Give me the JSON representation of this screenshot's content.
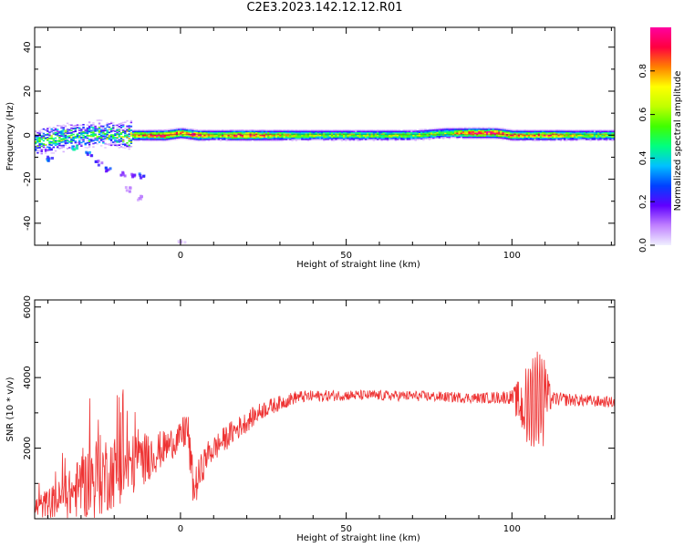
{
  "title": "C2E3.2023.142.12.12.R01",
  "chart_data": [
    {
      "type": "heatmap",
      "xlabel": "Height of straight line (km)",
      "ylabel": "Frequency (Hz)",
      "xlim": [
        -44,
        131
      ],
      "ylim": [
        -50,
        49
      ],
      "xticks": [
        0,
        50,
        100
      ],
      "yticks": [
        -40,
        -20,
        0,
        20,
        40
      ],
      "colorbar": {
        "label": "Normalized spectral amplitude",
        "range": [
          0.0,
          1.0
        ],
        "ticks": [
          0.0,
          0.2,
          0.4,
          0.6,
          0.8
        ],
        "colors": [
          "#f0f0ff",
          "#c080ff",
          "#6000ff",
          "#0040ff",
          "#00c0ff",
          "#00ff80",
          "#40ff00",
          "#c0ff00",
          "#ffff00",
          "#ff8000",
          "#ff0040",
          "#ff00a0"
        ]
      },
      "band": [
        {
          "x": -44,
          "f": -3,
          "amp": 0.55
        },
        {
          "x": -40,
          "f": -2,
          "amp": 0.6
        },
        {
          "x": -35,
          "f": -1,
          "amp": 0.55
        },
        {
          "x": -30,
          "f": 0,
          "amp": 0.5
        },
        {
          "x": -25,
          "f": 1,
          "amp": 0.55
        },
        {
          "x": -20,
          "f": 0,
          "amp": 0.5
        },
        {
          "x": -15,
          "f": 0,
          "amp": 0.7
        },
        {
          "x": -10,
          "f": 0,
          "amp": 0.8
        },
        {
          "x": -5,
          "f": 0,
          "amp": 0.9
        },
        {
          "x": 0,
          "f": 1,
          "amp": 0.8
        },
        {
          "x": 5,
          "f": 0,
          "amp": 0.9
        },
        {
          "x": 10,
          "f": 0,
          "amp": 0.6
        },
        {
          "x": 15,
          "f": 0,
          "amp": 0.85
        },
        {
          "x": 20,
          "f": 0,
          "amp": 0.9
        },
        {
          "x": 30,
          "f": 0,
          "amp": 0.7
        },
        {
          "x": 40,
          "f": 0,
          "amp": 0.6
        },
        {
          "x": 50,
          "f": 0,
          "amp": 0.6
        },
        {
          "x": 60,
          "f": 0,
          "amp": 0.6
        },
        {
          "x": 70,
          "f": 0,
          "amp": 0.6
        },
        {
          "x": 80,
          "f": 1,
          "amp": 0.6
        },
        {
          "x": 88,
          "f": 1,
          "amp": 0.9
        },
        {
          "x": 95,
          "f": 1,
          "amp": 0.9
        },
        {
          "x": 100,
          "f": 0,
          "amp": 0.8
        },
        {
          "x": 105,
          "f": 0,
          "amp": 0.7
        },
        {
          "x": 110,
          "f": 0,
          "amp": 0.85
        },
        {
          "x": 120,
          "f": 0,
          "amp": 0.6
        },
        {
          "x": 131,
          "f": 0,
          "amp": 0.6
        }
      ],
      "scatter_blobs": [
        {
          "x": -32,
          "f": -5,
          "amp": 0.4
        },
        {
          "x": -28,
          "f": -8,
          "amp": 0.3
        },
        {
          "x": -25,
          "f": -12,
          "amp": 0.2
        },
        {
          "x": -22,
          "f": -15,
          "amp": 0.25
        },
        {
          "x": -18,
          "f": -17,
          "amp": 0.15
        },
        {
          "x": -15,
          "f": -18,
          "amp": 0.2
        },
        {
          "x": -12,
          "f": -18,
          "amp": 0.25
        },
        {
          "x": -16,
          "f": -24,
          "amp": 0.1
        },
        {
          "x": -13,
          "f": -28,
          "amp": 0.1
        },
        {
          "x": -40,
          "f": -10,
          "amp": 0.35
        },
        {
          "x": -36,
          "f": 2,
          "amp": 0.5
        },
        {
          "x": 0,
          "f": -48,
          "amp": 0.05
        }
      ]
    },
    {
      "type": "line",
      "xlabel": "Height of straight line (km)",
      "ylabel": "SNR (10 * v/v)",
      "xlim": [
        -44,
        131
      ],
      "ylim": [
        0,
        6200
      ],
      "xticks": [
        0,
        50,
        100
      ],
      "yticks": [
        2000,
        4000,
        6000
      ],
      "color": "#ee3333",
      "trend": [
        {
          "x": -44,
          "y": 300,
          "noise": 300
        },
        {
          "x": -35,
          "y": 600,
          "noise": 600
        },
        {
          "x": -25,
          "y": 1200,
          "noise": 1200
        },
        {
          "x": -15,
          "y": 1500,
          "noise": 900
        },
        {
          "x": -5,
          "y": 2000,
          "noise": 500
        },
        {
          "x": 0,
          "y": 2300,
          "noise": 400
        },
        {
          "x": 2,
          "y": 2600,
          "noise": 700
        },
        {
          "x": 4,
          "y": 800,
          "noise": 600
        },
        {
          "x": 8,
          "y": 1800,
          "noise": 400
        },
        {
          "x": 15,
          "y": 2400,
          "noise": 350
        },
        {
          "x": 25,
          "y": 3100,
          "noise": 250
        },
        {
          "x": 35,
          "y": 3450,
          "noise": 180
        },
        {
          "x": 50,
          "y": 3500,
          "noise": 150
        },
        {
          "x": 70,
          "y": 3480,
          "noise": 150
        },
        {
          "x": 90,
          "y": 3420,
          "noise": 150
        },
        {
          "x": 100,
          "y": 3450,
          "noise": 200
        },
        {
          "x": 103,
          "y": 3200,
          "noise": 900
        },
        {
          "x": 106,
          "y": 3300,
          "noise": 1800
        },
        {
          "x": 109,
          "y": 3400,
          "noise": 1500
        },
        {
          "x": 112,
          "y": 3400,
          "noise": 200
        },
        {
          "x": 131,
          "y": 3300,
          "noise": 150
        }
      ]
    }
  ]
}
